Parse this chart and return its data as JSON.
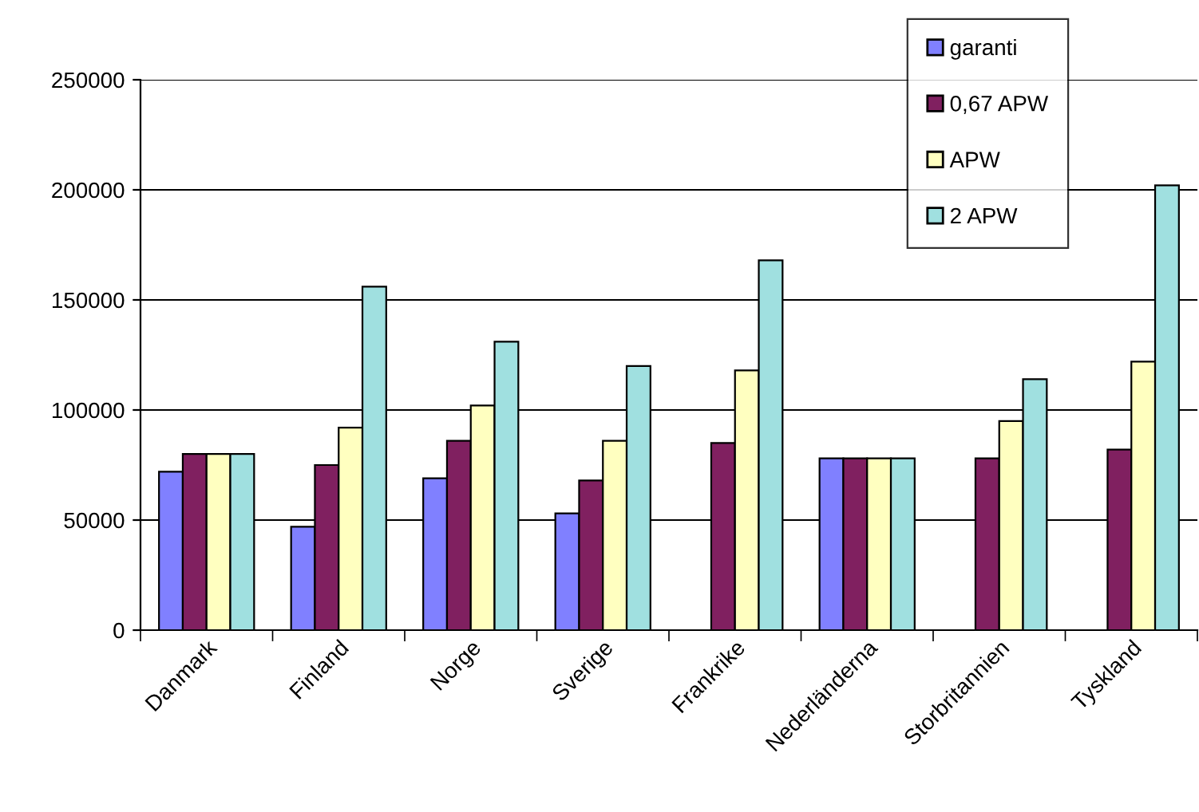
{
  "chart_data": {
    "type": "bar",
    "categories": [
      "Danmark",
      "Finland",
      "Norge",
      "Sverige",
      "Frankrike",
      "Nederländerna",
      "Storbritannien",
      "Tyskland"
    ],
    "series": [
      {
        "name": "garanti",
        "color": "#8080ff",
        "values": [
          72000,
          47000,
          69000,
          53000,
          null,
          78000,
          null,
          null
        ]
      },
      {
        "name": "0,67 APW",
        "color": "#802060",
        "values": [
          80000,
          75000,
          86000,
          68000,
          85000,
          78000,
          78000,
          82000
        ]
      },
      {
        "name": "APW",
        "color": "#ffffc0",
        "values": [
          80000,
          92000,
          102000,
          86000,
          118000,
          78000,
          95000,
          122000
        ]
      },
      {
        "name": "2 APW",
        "color": "#a0e0e0",
        "values": [
          80000,
          156000,
          131000,
          120000,
          168000,
          78000,
          114000,
          202000
        ]
      }
    ],
    "ylim": [
      0,
      250000
    ],
    "yticks": [
      0,
      50000,
      100000,
      150000,
      200000,
      250000
    ],
    "grid": "y",
    "legend": "top right"
  }
}
